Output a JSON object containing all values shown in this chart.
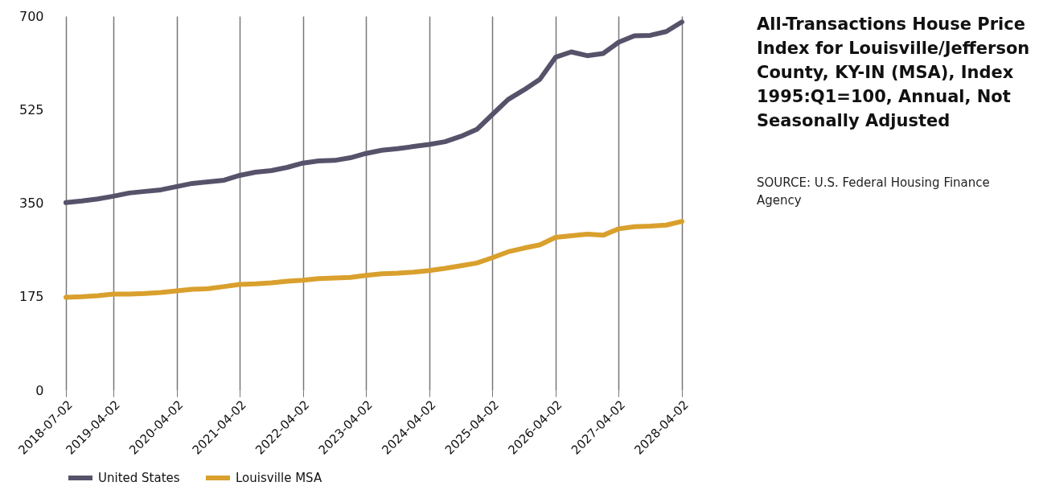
{
  "chart_data": {
    "type": "line",
    "title": "All-Transactions House Price Index for Louisville/Jefferson County, KY-IN (MSA), Index 1995:Q1=100, Annual, Not Seasonally Adjusted",
    "annotations": [
      "SOURCE: U.S. Federal Housing Finance Agency"
    ],
    "x": [
      "2018-07-02",
      "2018-10-02",
      "2019-01-02",
      "2019-04-02",
      "2019-07-02",
      "2019-10-02",
      "2020-01-02",
      "2020-04-02",
      "2020-07-02",
      "2020-10-02",
      "2021-01-02",
      "2021-04-02",
      "2021-07-02",
      "2021-10-02",
      "2022-01-02",
      "2022-04-02",
      "2022-07-02",
      "2022-10-02",
      "2023-01-02",
      "2023-04-02",
      "2023-07-02",
      "2023-10-02",
      "2024-01-02",
      "2024-04-02",
      "2024-07-02",
      "2024-10-02",
      "2025-01-02",
      "2025-04-02",
      "2025-07-02",
      "2025-10-02",
      "2026-01-02",
      "2026-04-02",
      "2026-07-02",
      "2026-10-02",
      "2027-01-02",
      "2027-04-02",
      "2027-07-02",
      "2027-10-02",
      "2028-01-02",
      "2028-04-02"
    ],
    "series": [
      {
        "name": "United States",
        "color": "#57526a",
        "values": [
          351,
          354,
          358,
          363,
          369,
          372,
          375,
          381,
          387,
          390,
          393,
          402,
          408,
          411,
          417,
          425,
          429,
          430,
          435,
          443,
          449,
          452,
          456,
          460,
          465,
          475,
          488,
          516,
          544,
          562,
          582,
          623,
          633,
          626,
          630,
          651,
          663,
          664,
          671,
          689
        ]
      },
      {
        "name": "Louisville MSA",
        "color": "#d9a02d",
        "values": [
          174,
          175,
          177,
          180,
          180,
          181,
          183,
          186,
          189,
          190,
          194,
          198,
          199,
          201,
          204,
          206,
          209,
          210,
          211,
          215,
          218,
          219,
          221,
          224,
          228,
          233,
          238,
          248,
          259,
          266,
          272,
          286,
          289,
          292,
          290,
          302,
          306,
          307,
          309,
          316
        ]
      }
    ],
    "xlim": [
      "2018-07-02",
      "2028-04-02"
    ],
    "xticks": [
      "2018-07-02",
      "2019-04-02",
      "2020-04-02",
      "2021-04-02",
      "2022-04-02",
      "2023-04-02",
      "2024-04-02",
      "2025-04-02",
      "2026-04-02",
      "2027-04-02",
      "2028-04-02"
    ],
    "ylim": [
      0,
      700
    ],
    "yticks": [
      0,
      175,
      350,
      525,
      700
    ],
    "grid": "x",
    "legend": "bottom",
    "marker": "none",
    "line_style": "solid"
  }
}
